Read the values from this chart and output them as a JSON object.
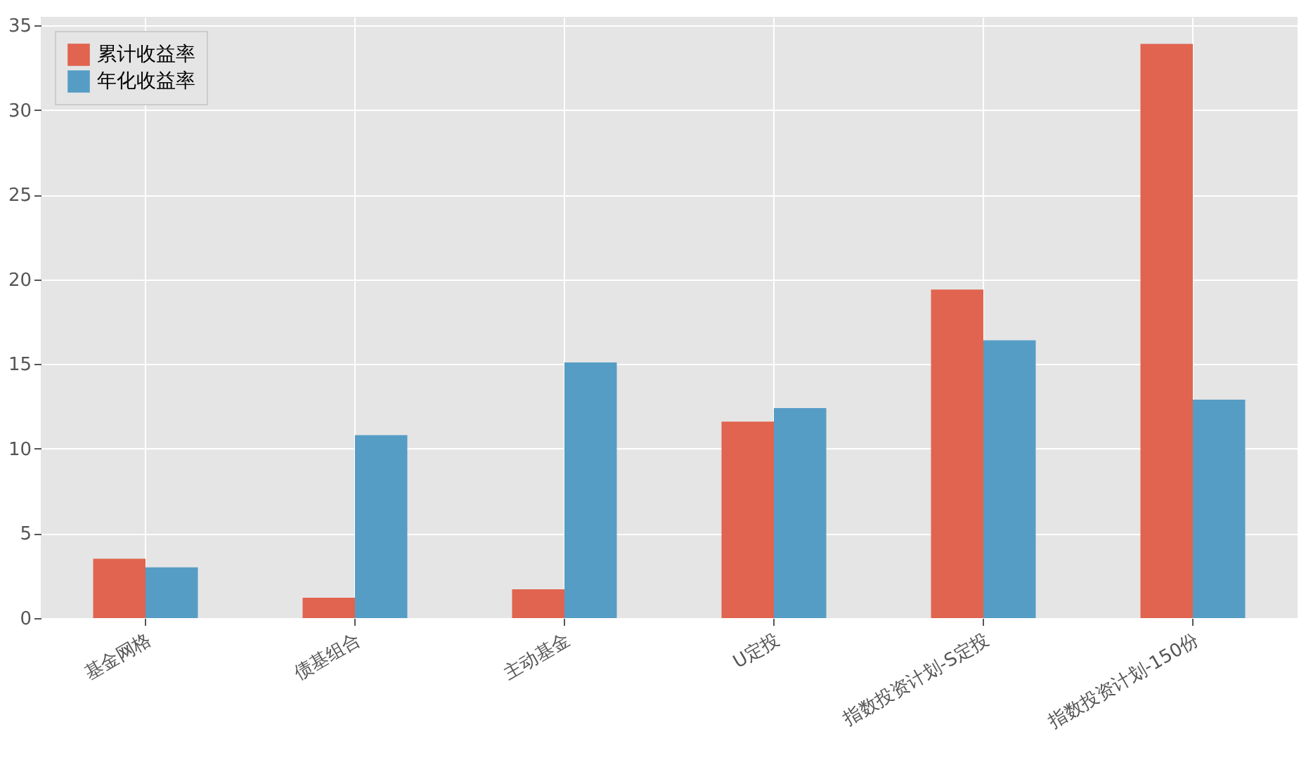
{
  "chart_data": {
    "type": "bar",
    "categories": [
      "基金网格",
      "债基组合",
      "主动基金",
      "U定投",
      "指数投资计划-S定投",
      "指数投资计划-150份"
    ],
    "series": [
      {
        "name": "累计收益率",
        "color": "#e0644f",
        "values": [
          3.5,
          1.2,
          1.7,
          11.6,
          19.4,
          33.9
        ]
      },
      {
        "name": "年化收益率",
        "color": "#569dc5",
        "values": [
          3.0,
          10.8,
          15.1,
          12.4,
          16.4,
          12.9
        ]
      }
    ],
    "ylim": [
      0,
      35.5
    ],
    "yticks": [
      0,
      5,
      10,
      15,
      20,
      25,
      30,
      35
    ],
    "grid": true,
    "legend": "top left"
  }
}
